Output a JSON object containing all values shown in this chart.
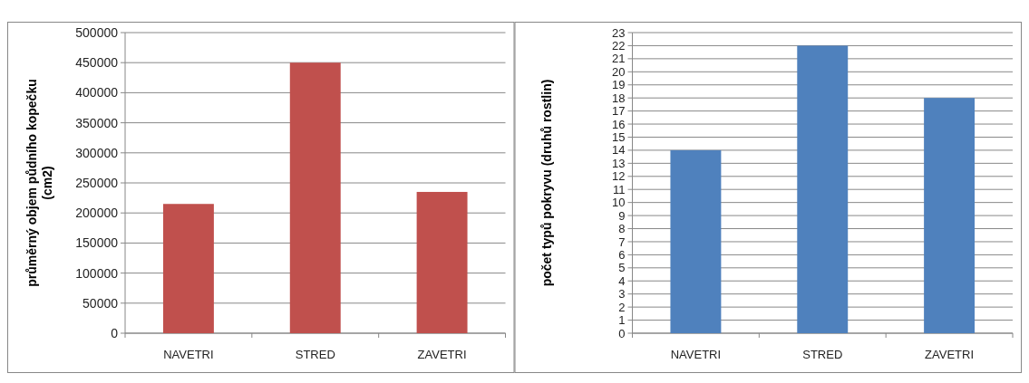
{
  "chart_data": [
    {
      "type": "bar",
      "categories": [
        "NAVETRI",
        "STRED",
        "ZAVETRI"
      ],
      "values": [
        215000,
        450000,
        235000
      ],
      "color": "#c0504d",
      "ylabel": "průměrný objem půdního kopečku (cm2)",
      "ylim": [
        0,
        500000
      ],
      "yticks": [
        0,
        50000,
        100000,
        150000,
        200000,
        250000,
        300000,
        350000,
        400000,
        450000,
        500000
      ],
      "grid": "y"
    },
    {
      "type": "bar",
      "categories": [
        "NAVETRI",
        "STRED",
        "ZAVETRI"
      ],
      "values": [
        14,
        22,
        18
      ],
      "color": "#4f81bd",
      "ylabel": "počet typů pokryvu (druhů rostlin)",
      "ylim": [
        0,
        23
      ],
      "yticks": [
        0,
        1,
        2,
        3,
        4,
        5,
        6,
        7,
        8,
        9,
        10,
        11,
        12,
        13,
        14,
        15,
        16,
        17,
        18,
        19,
        20,
        21,
        22,
        23
      ],
      "grid": "y"
    }
  ]
}
